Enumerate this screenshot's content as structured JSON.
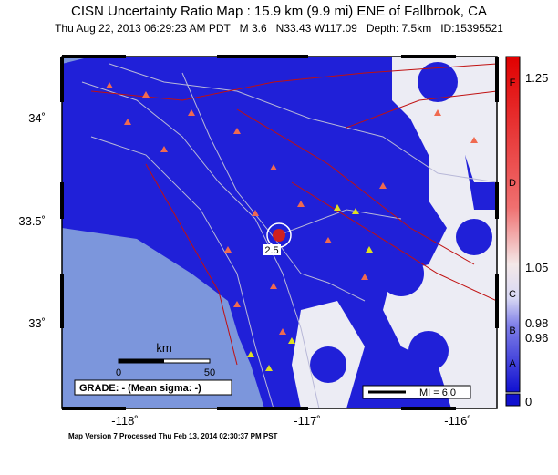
{
  "header": {
    "title": "CISN Uncertainty Ratio Map : 15.9 km (9.9 mi) ENE of Fallbrook, CA",
    "subtitle": "Thu Aug 22, 2013 06:29:23 AM PDT   M 3.6   N33.43 W117.09   Depth: 7.5km   ID:15395521"
  },
  "map": {
    "lat_labels": [
      "34˚",
      "33.5˚",
      "33˚"
    ],
    "lon_labels": [
      "-118˚",
      "-117˚",
      "-116˚"
    ],
    "scale_bar": {
      "unit": "km",
      "start": "0",
      "end": "50"
    },
    "grade": "GRADE: - (Mean sigma: -)",
    "mi_legend": "MI = 6.0",
    "contour_label": "2.5"
  },
  "colorbar": {
    "values": [
      "1.25",
      "1.05",
      "0.98",
      "0.96",
      "0"
    ],
    "grades": [
      "F",
      "D",
      "C",
      "B",
      "A"
    ]
  },
  "footer": "Map Version 7 Processed Thu Feb 13, 2014 02:30:37 PM PST"
}
